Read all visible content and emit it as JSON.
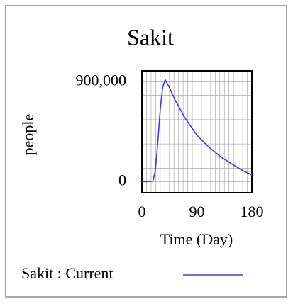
{
  "chart_data": {
    "type": "line",
    "title": "Sakit",
    "x_label": "Time (Day)",
    "y_label": "people",
    "x": [
      0,
      10,
      18,
      22,
      26,
      30,
      34,
      38,
      45,
      55,
      70,
      90,
      110,
      130,
      150,
      165,
      180
    ],
    "series": [
      {
        "name": "Sakit : Current",
        "color": "#3b3bee",
        "values": [
          0,
          0,
          5000,
          100000,
          350000,
          650000,
          850000,
          920000,
          850000,
          730000,
          580000,
          420000,
          310000,
          220000,
          150000,
          100000,
          60000
        ]
      }
    ],
    "xlim": [
      0,
      180
    ],
    "xticks": [
      0,
      90,
      180
    ],
    "ylim": [
      -100000,
      1000000
    ],
    "yticks": [
      0,
      {
        "value": 900000,
        "label": "900,000"
      }
    ],
    "grid": true
  }
}
